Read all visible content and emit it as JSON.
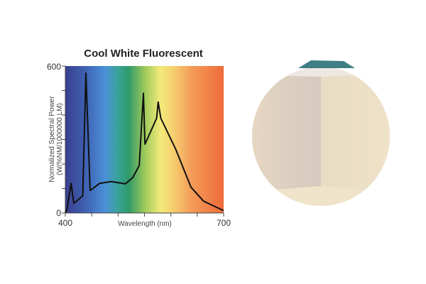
{
  "chart_data": {
    "type": "line",
    "title": "Cool White Fluorescent",
    "xlabel": "Wavelength (nm)",
    "ylabel": "Normalized Spectral Power (W/%NM/1000000 LM)",
    "ylabel_lines": [
      "Normalized Spectral Power",
      "(W/%NM/1000000 LM)"
    ],
    "xlim": [
      400,
      700
    ],
    "ylim": [
      0,
      600
    ],
    "x_tick_labels": [
      "400",
      "700"
    ],
    "y_tick_labels": [
      "600",
      "0"
    ],
    "x_ticks": [
      400,
      450,
      500,
      550,
      600,
      650,
      700
    ],
    "y_ticks": [
      0,
      100,
      200,
      300,
      400,
      500,
      600
    ],
    "background": "visible spectrum gradient (violet to red)",
    "line_color": "#111111",
    "series": [
      {
        "x": [
          400,
          403,
          411,
          416,
          433,
          439,
          447,
          465,
          487,
          514,
          528,
          540,
          548,
          551,
          573,
          576,
          581,
          609,
          638,
          662,
          700
        ],
        "y": [
          2,
          15,
          121,
          39,
          70,
          571,
          92,
          121,
          128,
          119,
          145,
          194,
          489,
          281,
          387,
          453,
          387,
          261,
          106,
          48,
          10
        ]
      }
    ]
  },
  "photo": {
    "description_icon": "room-corner-photo"
  }
}
